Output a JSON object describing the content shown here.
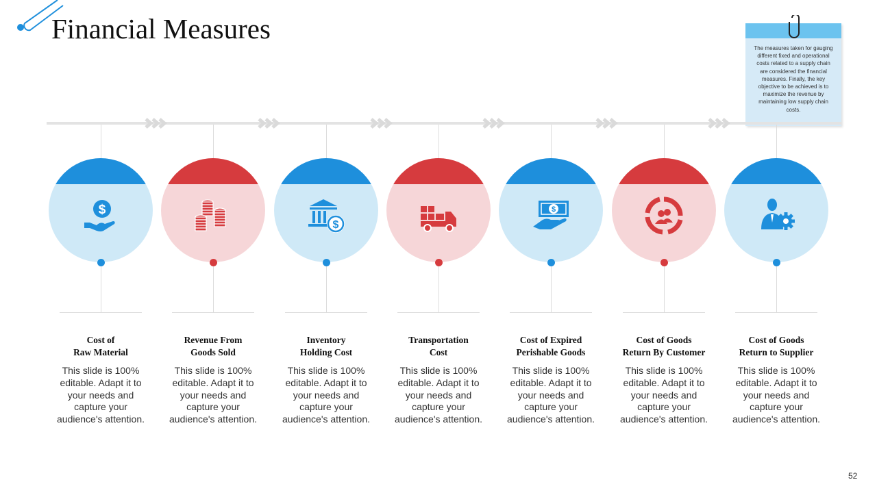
{
  "title": "Financial Measures",
  "note": "The measures taken for gauging different fixed and operational costs related to a supply chain are considered the financial measures. Finally, the key objective to be achieved is to maximize the revenue by maintaining low supply chain costs.",
  "page_number": "52",
  "colors": {
    "blue": "#1e8fdc",
    "red": "#d63b3e",
    "light_blue": "#cfe9f7",
    "light_red": "#f6d6d8",
    "note_band": "#6cc3ef"
  },
  "items": [
    {
      "line1": "Cost of",
      "line2": "Raw Material",
      "color": "blue",
      "icon": "money-hand-icon",
      "desc": [
        "This slide is 100%",
        "editable. Adapt it to",
        "your needs and",
        "capture your",
        "audience's attention."
      ]
    },
    {
      "line1": "Revenue From",
      "line2": "Goods Sold",
      "color": "red",
      "icon": "coin-stacks-icon",
      "desc": [
        "This slide is 100%",
        "editable. Adapt it to",
        "your needs and",
        "capture your",
        "audience's attention."
      ]
    },
    {
      "line1": "Inventory",
      "line2": "Holding Cost",
      "color": "blue",
      "icon": "bank-dollar-icon",
      "desc": [
        "This slide is 100%",
        "editable. Adapt it to",
        "your needs and",
        "capture your",
        "audience's attention."
      ]
    },
    {
      "line1": "Transportation",
      "line2": "Cost",
      "color": "red",
      "icon": "delivery-truck-icon",
      "desc": [
        "This slide is 100%",
        "editable. Adapt it to",
        "your needs and",
        "capture your",
        "audience's attention."
      ]
    },
    {
      "line1": "Cost of Expired",
      "line2": "Perishable Goods",
      "color": "blue",
      "icon": "banknote-hand-icon",
      "desc": [
        "This slide is 100%",
        "editable. Adapt it to",
        "your needs and",
        "capture your",
        "audience's attention."
      ]
    },
    {
      "line1": "Cost of Goods",
      "line2": "Return By Customer",
      "color": "red",
      "icon": "customer-cycle-icon",
      "desc": [
        "This slide is 100%",
        "editable. Adapt it to",
        "your needs and",
        "capture your",
        "audience's attention."
      ]
    },
    {
      "line1": "Cost of Goods",
      "line2": "Return to Supplier",
      "color": "blue",
      "icon": "person-gear-icon",
      "desc": [
        "This slide is 100%",
        "editable. Adapt it to",
        "your needs and",
        "capture your",
        "audience's attention."
      ]
    }
  ]
}
